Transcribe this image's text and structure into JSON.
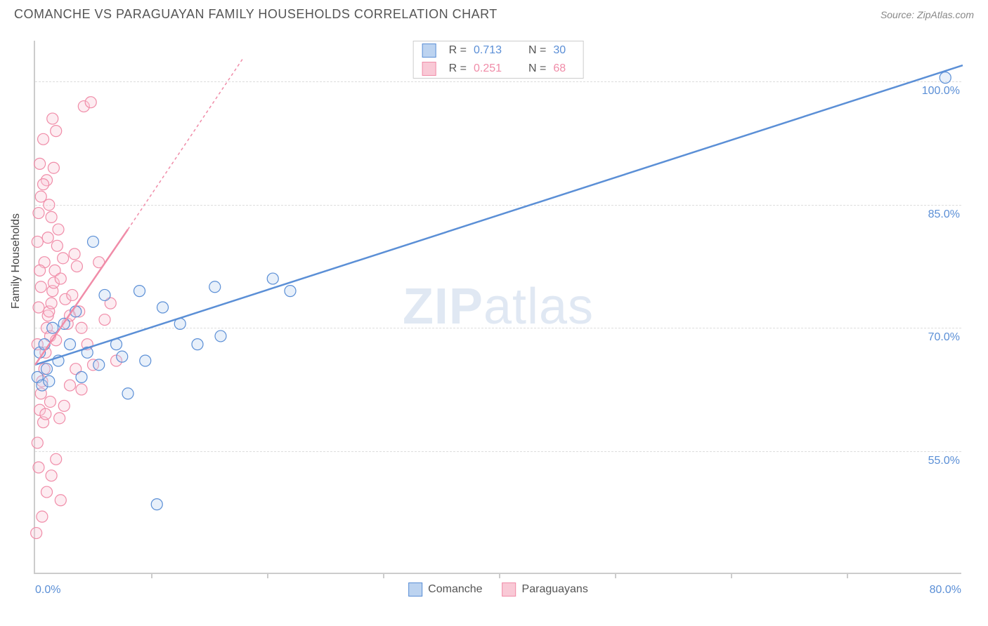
{
  "title": "COMANCHE VS PARAGUAYAN FAMILY HOUSEHOLDS CORRELATION CHART",
  "source": "Source: ZipAtlas.com",
  "y_axis_title": "Family Households",
  "watermark": {
    "bold": "ZIP",
    "light": "atlas"
  },
  "chart": {
    "type": "scatter",
    "xlim": [
      0,
      80
    ],
    "ylim": [
      40,
      105
    ],
    "x_tick_step": 10,
    "y_gridlines": [
      55,
      70,
      85,
      100
    ],
    "y_tick_labels": [
      "55.0%",
      "70.0%",
      "85.0%",
      "100.0%"
    ],
    "x_label_min": "0.0%",
    "x_label_max": "80.0%",
    "background_color": "#ffffff",
    "grid_color": "#dddddd",
    "axis_color": "#cccccc",
    "marker_radius": 8,
    "marker_fill_opacity": 0.35,
    "marker_stroke_width": 1.2,
    "trend_line_width": 2.5
  },
  "series": [
    {
      "name": "Comanche",
      "color": "#5b8fd6",
      "fill": "#bcd3f0",
      "R": "0.713",
      "N": "30",
      "trend": {
        "x1": 0,
        "y1": 65.5,
        "x2": 80,
        "y2": 102,
        "dash": "none"
      },
      "points": [
        [
          0.2,
          64
        ],
        [
          0.4,
          67
        ],
        [
          0.6,
          63
        ],
        [
          0.8,
          68
        ],
        [
          1.0,
          65
        ],
        [
          1.2,
          63.5
        ],
        [
          1.5,
          70
        ],
        [
          2.0,
          66
        ],
        [
          2.5,
          70.5
        ],
        [
          3.0,
          68
        ],
        [
          3.5,
          72
        ],
        [
          4.0,
          64
        ],
        [
          4.5,
          67
        ],
        [
          5.0,
          80.5
        ],
        [
          5.5,
          65.5
        ],
        [
          6.0,
          74
        ],
        [
          7.0,
          68
        ],
        [
          7.5,
          66.5
        ],
        [
          8.0,
          62
        ],
        [
          9.0,
          74.5
        ],
        [
          9.5,
          66
        ],
        [
          10.5,
          48.5
        ],
        [
          11.0,
          72.5
        ],
        [
          12.5,
          70.5
        ],
        [
          14.0,
          68
        ],
        [
          15.5,
          75
        ],
        [
          16.0,
          69
        ],
        [
          20.5,
          76
        ],
        [
          22.0,
          74.5
        ],
        [
          78.5,
          100.5
        ]
      ]
    },
    {
      "name": "Paraguayans",
      "color": "#f08ca8",
      "fill": "#f9c9d6",
      "R": "0.251",
      "N": "68",
      "trend": {
        "x1": 0,
        "y1": 65.5,
        "x2": 8,
        "y2": 82,
        "dash": "none"
      },
      "trend_ext": {
        "x1": 8,
        "y1": 82,
        "x2": 18,
        "y2": 103,
        "dash": "4,4"
      },
      "points": [
        [
          0.1,
          45
        ],
        [
          0.3,
          53
        ],
        [
          0.4,
          60
        ],
        [
          0.5,
          62
        ],
        [
          0.6,
          63.5
        ],
        [
          0.7,
          58.5
        ],
        [
          0.2,
          68
        ],
        [
          0.8,
          65
        ],
        [
          0.9,
          67
        ],
        [
          1.0,
          70
        ],
        [
          1.1,
          71.5
        ],
        [
          1.2,
          72
        ],
        [
          1.3,
          69
        ],
        [
          1.4,
          73
        ],
        [
          1.5,
          74.5
        ],
        [
          1.6,
          75.5
        ],
        [
          1.7,
          77
        ],
        [
          1.8,
          68.5
        ],
        [
          1.9,
          80
        ],
        [
          2.0,
          82
        ],
        [
          0.3,
          84
        ],
        [
          0.5,
          86
        ],
        [
          1.0,
          88
        ],
        [
          1.2,
          85
        ],
        [
          2.2,
          76
        ],
        [
          2.4,
          78.5
        ],
        [
          2.6,
          73.5
        ],
        [
          2.8,
          70.5
        ],
        [
          3.0,
          71.5
        ],
        [
          3.2,
          74
        ],
        [
          3.4,
          79
        ],
        [
          3.6,
          77.5
        ],
        [
          1.5,
          95.5
        ],
        [
          1.8,
          94
        ],
        [
          4.2,
          97
        ],
        [
          0.4,
          90
        ],
        [
          0.7,
          87.5
        ],
        [
          3.8,
          72
        ],
        [
          4.0,
          70
        ],
        [
          4.5,
          68
        ],
        [
          5.0,
          65.5
        ],
        [
          5.5,
          78
        ],
        [
          6.0,
          71
        ],
        [
          6.5,
          73
        ],
        [
          7.0,
          66
        ],
        [
          0.2,
          56
        ],
        [
          0.9,
          59.5
        ],
        [
          1.3,
          61
        ],
        [
          2.1,
          59
        ],
        [
          2.5,
          60.5
        ],
        [
          3.0,
          63
        ],
        [
          3.5,
          65
        ],
        [
          4.0,
          62.5
        ],
        [
          1.0,
          50
        ],
        [
          1.4,
          52
        ],
        [
          1.8,
          54
        ],
        [
          0.6,
          47
        ],
        [
          2.2,
          49
        ],
        [
          0.3,
          72.5
        ],
        [
          0.5,
          75
        ],
        [
          0.8,
          78
        ],
        [
          1.1,
          81
        ],
        [
          1.4,
          83.5
        ],
        [
          0.2,
          80.5
        ],
        [
          0.4,
          77
        ],
        [
          4.8,
          97.5
        ],
        [
          0.7,
          93
        ],
        [
          1.6,
          89.5
        ]
      ]
    }
  ],
  "bottom_legend": [
    {
      "label": "Comanche",
      "fill": "#bcd3f0",
      "border": "#5b8fd6"
    },
    {
      "label": "Paraguayans",
      "fill": "#f9c9d6",
      "border": "#f08ca8"
    }
  ]
}
